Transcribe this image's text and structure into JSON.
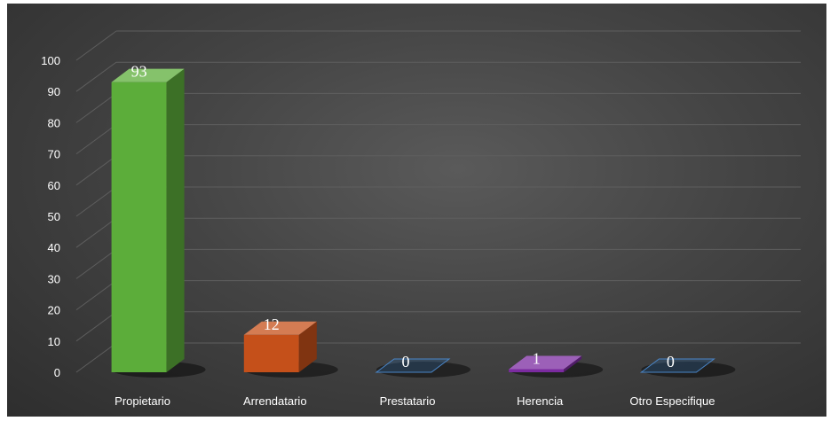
{
  "chart_data": {
    "type": "bar",
    "categories": [
      "Propietario",
      "Arrendatario",
      "Prestatario",
      "Herencia",
      "Otro Especifique"
    ],
    "values": [
      93,
      12,
      0,
      1,
      0
    ],
    "data_labels": [
      "93",
      "12",
      "0",
      "1",
      "0"
    ],
    "ylim": [
      0,
      100
    ],
    "yticks": [
      "0",
      "10",
      "20",
      "30",
      "40",
      "50",
      "60",
      "70",
      "80",
      "90",
      "100"
    ],
    "grid": true,
    "legend": "none",
    "colors": [
      "#5cad3a",
      "#c5501a",
      "#2b5b8c",
      "#7b2ba0",
      "#2b5b8c"
    ],
    "background": "#444444"
  }
}
